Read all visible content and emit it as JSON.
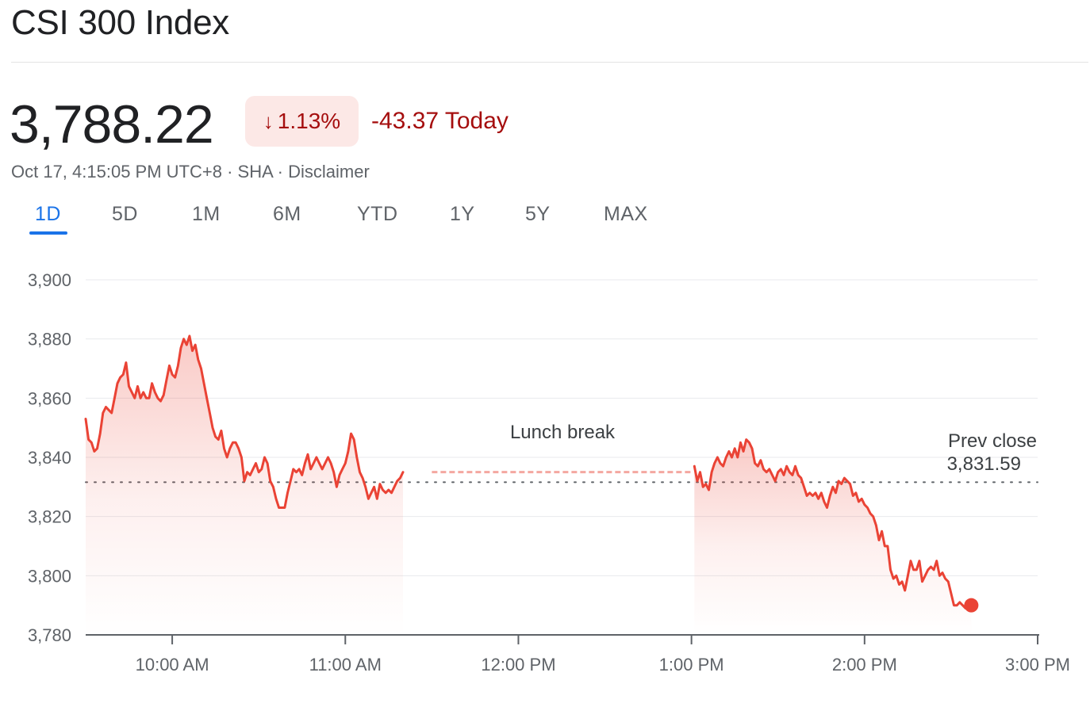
{
  "header": {
    "title": "CSI 300 Index",
    "price": "3,788.22",
    "change_arrow": "↓",
    "change_percent": "1.13%",
    "change_abs": "-43.37 Today",
    "timestamp": "Oct 17, 4:15:05 PM UTC+8",
    "separator": " · ",
    "exchange": "SHA",
    "disclaimer": "Disclaimer"
  },
  "colors": {
    "negative": "#a50e0e",
    "negative_bg": "#fce8e6",
    "line": "#ea4335",
    "accent": "#1a73e8"
  },
  "tabs": [
    {
      "label": "1D",
      "active": true
    },
    {
      "label": "5D",
      "active": false
    },
    {
      "label": "1M",
      "active": false
    },
    {
      "label": "6M",
      "active": false
    },
    {
      "label": "YTD",
      "active": false
    },
    {
      "label": "1Y",
      "active": false
    },
    {
      "label": "5Y",
      "active": false
    },
    {
      "label": "MAX",
      "active": false
    }
  ],
  "chart_data": {
    "type": "line",
    "title": "",
    "xlabel": "",
    "ylabel": "",
    "ylim": [
      3780,
      3900
    ],
    "yticks": [
      3780,
      3800,
      3820,
      3840,
      3860,
      3880,
      3900
    ],
    "ytick_labels": [
      "3,780",
      "3,800",
      "3,820",
      "3,840",
      "3,860",
      "3,880",
      "3,900"
    ],
    "xlim_minutes": [
      570,
      900
    ],
    "xticks": [
      600,
      660,
      720,
      780,
      840,
      900
    ],
    "xtick_labels": [
      "10:00 AM",
      "11:00 AM",
      "12:00 PM",
      "1:00 PM",
      "2:00 PM",
      "3:00 PM"
    ],
    "grid": true,
    "prev_close": 3831.59,
    "prev_close_label": "Prev close",
    "prev_close_value_label": "3,831.59",
    "break_label": "Lunch break",
    "break_value": 3835,
    "break_range": [
      690,
      780
    ],
    "series": [
      {
        "session": "morning",
        "points": [
          [
            570,
            3853
          ],
          [
            571,
            3846
          ],
          [
            572,
            3845
          ],
          [
            573,
            3842
          ],
          [
            574,
            3843
          ],
          [
            575,
            3848
          ],
          [
            576,
            3855
          ],
          [
            577,
            3857
          ],
          [
            578,
            3856
          ],
          [
            579,
            3855
          ],
          [
            580,
            3860
          ],
          [
            581,
            3865
          ],
          [
            582,
            3867
          ],
          [
            583,
            3868
          ],
          [
            584,
            3872
          ],
          [
            585,
            3864
          ],
          [
            586,
            3862
          ],
          [
            587,
            3860
          ],
          [
            588,
            3864
          ],
          [
            589,
            3860
          ],
          [
            590,
            3862
          ],
          [
            591,
            3860
          ],
          [
            592,
            3860
          ],
          [
            593,
            3865
          ],
          [
            594,
            3862
          ],
          [
            595,
            3860
          ],
          [
            596,
            3859
          ],
          [
            597,
            3861
          ],
          [
            598,
            3866
          ],
          [
            599,
            3871
          ],
          [
            600,
            3868
          ],
          [
            601,
            3867
          ],
          [
            602,
            3871
          ],
          [
            603,
            3877
          ],
          [
            604,
            3880
          ],
          [
            605,
            3878
          ],
          [
            606,
            3881
          ],
          [
            607,
            3876
          ],
          [
            608,
            3878
          ],
          [
            609,
            3873
          ],
          [
            610,
            3870
          ],
          [
            611,
            3865
          ],
          [
            612,
            3860
          ],
          [
            613,
            3855
          ],
          [
            614,
            3850
          ],
          [
            615,
            3847
          ],
          [
            616,
            3846
          ],
          [
            617,
            3849
          ],
          [
            618,
            3843
          ],
          [
            619,
            3840
          ],
          [
            620,
            3843
          ],
          [
            621,
            3845
          ],
          [
            622,
            3845
          ],
          [
            623,
            3843
          ],
          [
            624,
            3840
          ],
          [
            625,
            3832
          ],
          [
            626,
            3835
          ],
          [
            627,
            3834
          ],
          [
            628,
            3836
          ],
          [
            629,
            3838
          ],
          [
            630,
            3835
          ],
          [
            631,
            3836
          ],
          [
            632,
            3840
          ],
          [
            633,
            3838
          ],
          [
            634,
            3832
          ],
          [
            635,
            3830
          ],
          [
            636,
            3826
          ],
          [
            637,
            3823
          ],
          [
            638,
            3823
          ],
          [
            639,
            3823
          ],
          [
            640,
            3828
          ],
          [
            641,
            3832
          ],
          [
            642,
            3836
          ],
          [
            643,
            3835
          ],
          [
            644,
            3836
          ],
          [
            645,
            3834
          ],
          [
            646,
            3838
          ],
          [
            647,
            3841
          ],
          [
            648,
            3836
          ],
          [
            649,
            3838
          ],
          [
            650,
            3840
          ],
          [
            651,
            3838
          ],
          [
            652,
            3836
          ],
          [
            653,
            3838
          ],
          [
            654,
            3840
          ],
          [
            655,
            3838
          ],
          [
            656,
            3835
          ],
          [
            657,
            3830
          ],
          [
            658,
            3834
          ],
          [
            659,
            3836
          ],
          [
            660,
            3838
          ],
          [
            661,
            3842
          ],
          [
            662,
            3848
          ],
          [
            663,
            3846
          ],
          [
            664,
            3840
          ],
          [
            665,
            3835
          ],
          [
            666,
            3833
          ],
          [
            667,
            3830
          ],
          [
            668,
            3826
          ],
          [
            669,
            3828
          ],
          [
            670,
            3830
          ],
          [
            671,
            3826
          ],
          [
            672,
            3831
          ],
          [
            673,
            3829
          ],
          [
            674,
            3828
          ],
          [
            675,
            3829
          ],
          [
            676,
            3828
          ],
          [
            677,
            3830
          ],
          [
            678,
            3832
          ],
          [
            679,
            3833
          ],
          [
            680,
            3835
          ]
        ]
      },
      {
        "session": "afternoon",
        "points": [
          [
            781,
            3837
          ],
          [
            782,
            3832
          ],
          [
            783,
            3835
          ],
          [
            784,
            3830
          ],
          [
            785,
            3831
          ],
          [
            786,
            3829
          ],
          [
            787,
            3835
          ],
          [
            788,
            3838
          ],
          [
            789,
            3840
          ],
          [
            790,
            3838
          ],
          [
            791,
            3837
          ],
          [
            792,
            3840
          ],
          [
            793,
            3842
          ],
          [
            794,
            3840
          ],
          [
            795,
            3843
          ],
          [
            796,
            3840
          ],
          [
            797,
            3845
          ],
          [
            798,
            3842
          ],
          [
            799,
            3846
          ],
          [
            800,
            3845
          ],
          [
            801,
            3843
          ],
          [
            802,
            3838
          ],
          [
            803,
            3837
          ],
          [
            804,
            3839
          ],
          [
            805,
            3836
          ],
          [
            806,
            3835
          ],
          [
            807,
            3836
          ],
          [
            808,
            3834
          ],
          [
            809,
            3832
          ],
          [
            810,
            3835
          ],
          [
            811,
            3836
          ],
          [
            812,
            3834
          ],
          [
            813,
            3837
          ],
          [
            814,
            3835
          ],
          [
            815,
            3834
          ],
          [
            816,
            3837
          ],
          [
            817,
            3834
          ],
          [
            818,
            3833
          ],
          [
            819,
            3830
          ],
          [
            820,
            3827
          ],
          [
            821,
            3828
          ],
          [
            822,
            3827
          ],
          [
            823,
            3828
          ],
          [
            824,
            3826
          ],
          [
            825,
            3828
          ],
          [
            826,
            3825
          ],
          [
            827,
            3823
          ],
          [
            828,
            3827
          ],
          [
            829,
            3830
          ],
          [
            830,
            3828
          ],
          [
            831,
            3832
          ],
          [
            832,
            3831
          ],
          [
            833,
            3833
          ],
          [
            834,
            3832
          ],
          [
            835,
            3831
          ],
          [
            836,
            3827
          ],
          [
            837,
            3828
          ],
          [
            838,
            3825
          ],
          [
            839,
            3826
          ],
          [
            840,
            3824
          ],
          [
            841,
            3823
          ],
          [
            842,
            3821
          ],
          [
            843,
            3820
          ],
          [
            844,
            3817
          ],
          [
            845,
            3812
          ],
          [
            846,
            3815
          ],
          [
            847,
            3810
          ],
          [
            848,
            3810
          ],
          [
            849,
            3802
          ],
          [
            850,
            3799
          ],
          [
            851,
            3800
          ],
          [
            852,
            3797
          ],
          [
            853,
            3798
          ],
          [
            854,
            3795
          ],
          [
            855,
            3800
          ],
          [
            856,
            3805
          ],
          [
            857,
            3802
          ],
          [
            858,
            3802
          ],
          [
            859,
            3805
          ],
          [
            860,
            3798
          ],
          [
            861,
            3800
          ],
          [
            862,
            3802
          ],
          [
            863,
            3803
          ],
          [
            864,
            3802
          ],
          [
            865,
            3805
          ],
          [
            866,
            3800
          ],
          [
            867,
            3801
          ],
          [
            868,
            3799
          ],
          [
            869,
            3798
          ],
          [
            870,
            3794
          ],
          [
            871,
            3790
          ],
          [
            872,
            3790
          ],
          [
            873,
            3791
          ],
          [
            874,
            3790
          ],
          [
            875,
            3789
          ],
          [
            876,
            3790
          ],
          [
            877,
            3790
          ]
        ]
      }
    ],
    "last_point": [
      877,
      3790
    ]
  }
}
